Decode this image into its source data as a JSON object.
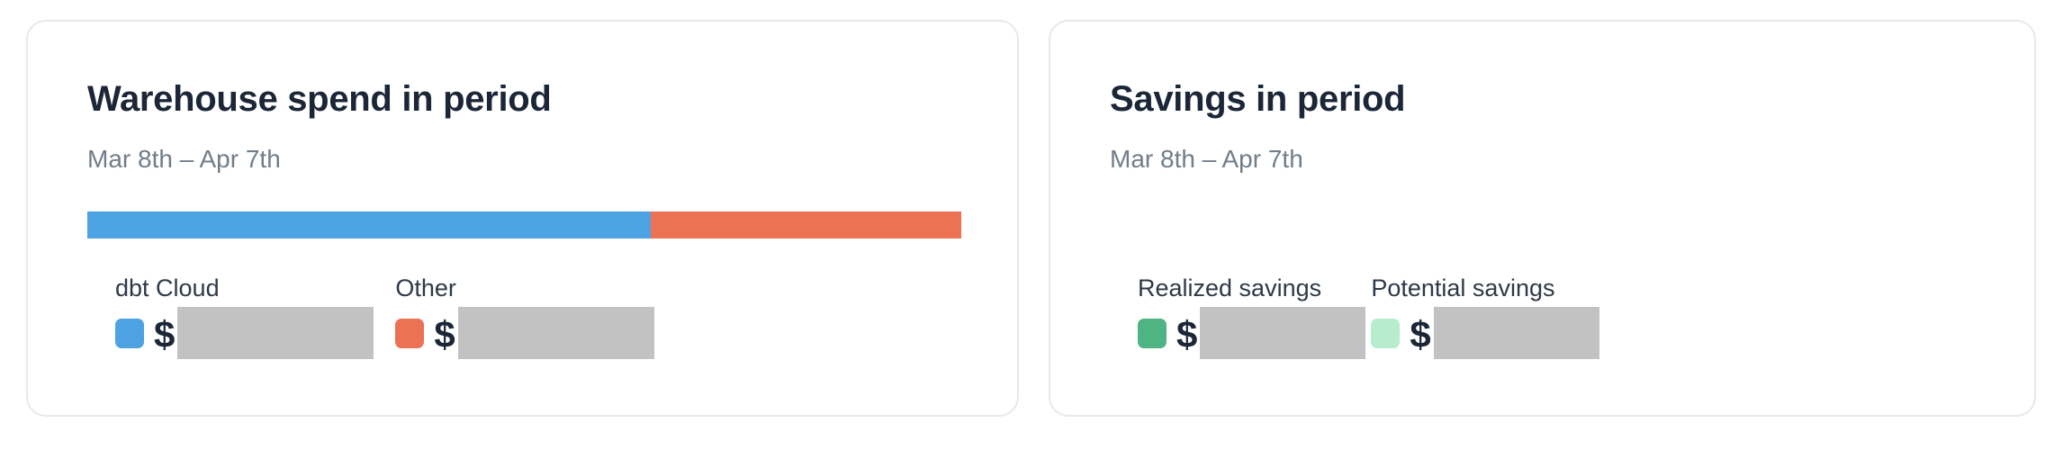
{
  "page": {
    "background_color": "#ffffff"
  },
  "colors": {
    "card_border": "#e8e8ee",
    "title_text": "#1b2637",
    "period_text": "#717d8a",
    "legend_label_text": "#2e3947",
    "redaction_box": "#c2c2c2",
    "dbt_cloud_blue": "#4DA2E2",
    "other_orange": "#EC7253",
    "realized_green": "#4EB483",
    "potential_mint": "#B7ECCC"
  },
  "cards": [
    {
      "title": "Warehouse spend in period",
      "period": "Mar 8th – Apr 7th",
      "legend": [
        {
          "label": "dbt Cloud",
          "swatch_color": "#4DA2E2",
          "currency_symbol": "$",
          "value": null,
          "value_redacted": true
        },
        {
          "label": "Other",
          "swatch_color": "#EC7253",
          "currency_symbol": "$",
          "value": null,
          "value_redacted": true
        }
      ]
    },
    {
      "title": "Savings in period",
      "period": "Mar 8th – Apr 7th",
      "legend": [
        {
          "label": "Realized savings",
          "swatch_color": "#4EB483",
          "currency_symbol": "$",
          "value": null,
          "value_redacted": true
        },
        {
          "label": "Potential savings",
          "swatch_color": "#B7ECCC",
          "currency_symbol": "$",
          "value": null,
          "value_redacted": true
        }
      ]
    }
  ],
  "chart_data": [
    {
      "type": "bar",
      "variant": "horizontal-stacked",
      "title": "Warehouse spend in period",
      "subtitle": "Mar 8th – Apr 7th",
      "legend_position": "below",
      "series": [
        {
          "name": "dbt Cloud",
          "color": "#4DA2E2",
          "percent_of_bar": 64.5,
          "value_display": "$",
          "value_redacted": true
        },
        {
          "name": "Other",
          "color": "#EC7253",
          "percent_of_bar": 35.5,
          "value_display": "$",
          "value_redacted": true
        }
      ]
    },
    {
      "type": "bar",
      "variant": "legend-only-no-bar-shown",
      "title": "Savings in period",
      "subtitle": "Mar 8th – Apr 7th",
      "legend_position": "below",
      "series": [
        {
          "name": "Realized savings",
          "color": "#4EB483",
          "percent_of_bar": null,
          "value_display": "$",
          "value_redacted": true
        },
        {
          "name": "Potential savings",
          "color": "#B7ECCC",
          "percent_of_bar": null,
          "value_display": "$",
          "value_redacted": true
        }
      ]
    }
  ]
}
